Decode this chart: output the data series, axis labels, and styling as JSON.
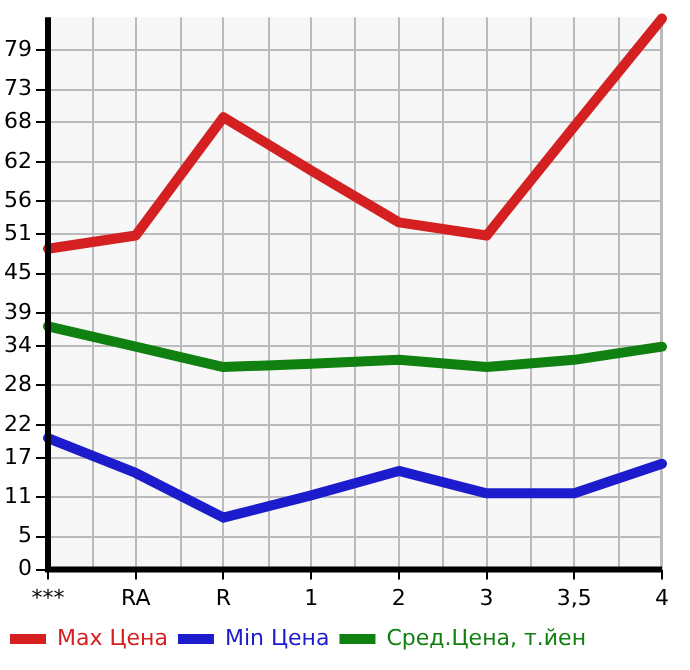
{
  "chart_data": {
    "type": "line",
    "categories": [
      "***",
      "RA",
      "R",
      "1",
      "2",
      "3",
      "3,5",
      "4"
    ],
    "series": [
      {
        "name": "Max Цена",
        "color": "#d42020",
        "values": [
          48.8,
          50.8,
          68.8,
          60.7,
          52.8,
          50.8,
          67.4,
          83.8
        ]
      },
      {
        "name": "Min Цена",
        "color": "#1c1ccc",
        "values": [
          20.0,
          14.7,
          7.9,
          11.3,
          15.0,
          11.6,
          11.6,
          16.1
        ]
      },
      {
        "name": "Сред.Цена, т.йен",
        "color": "#108010",
        "values": [
          37.0,
          33.9,
          30.8,
          31.3,
          31.9,
          30.8,
          31.9,
          33.9
        ]
      }
    ],
    "ylim": [
      0,
      84
    ],
    "yticks": [
      0,
      5,
      11,
      17,
      22,
      28,
      34,
      39,
      45,
      51,
      56,
      62,
      68,
      73,
      79
    ],
    "grid": true,
    "legend": "bottom",
    "marker": "none",
    "line_style": "solid"
  }
}
